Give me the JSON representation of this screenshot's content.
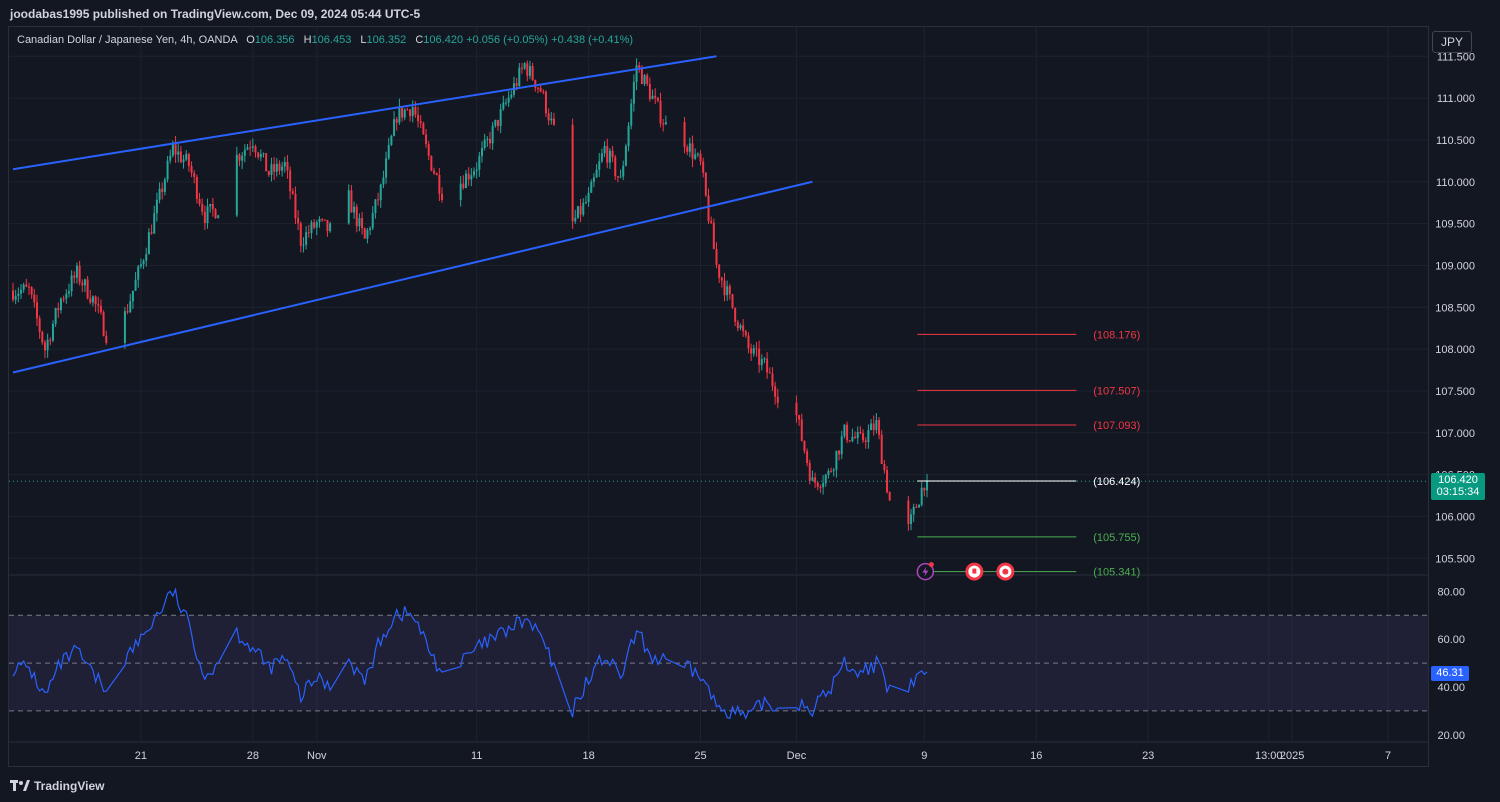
{
  "header": {
    "published_line": "joodabas1995 published on TradingView.com, Dec 09, 2024 05:44 UTC-5"
  },
  "legend": {
    "symbol": "Canadian Dollar / Japanese Yen, 4h, OANDA",
    "open_label": "O",
    "open": "106.356",
    "high_label": "H",
    "high": "106.453",
    "low_label": "L",
    "low": "106.352",
    "close_label": "C",
    "close": "106.420",
    "change": "+0.056 (+0.05%)",
    "change2": "+0.438 (+0.41%)"
  },
  "currency_button": "JPY",
  "last_price": {
    "price": "106.420",
    "countdown": "03:15:34"
  },
  "rsi_value_tag": "46.31",
  "brand": {
    "name": "TradingView"
  },
  "colors": {
    "background": "#131722",
    "up": "#26a69a",
    "down": "#f23645",
    "channel": "#2962ff",
    "rsi_line": "#2962ff",
    "rsi_band": "#7e57c2"
  },
  "chart_data": [
    {
      "type": "candlestick",
      "title": "Canadian Dollar / Japanese Yen, 4h, OANDA",
      "x_ticks": [
        "21",
        "28",
        "Nov",
        "11",
        "18",
        "25",
        "Dec",
        "9",
        "16",
        "23",
        "13:00",
        "2025",
        "7"
      ],
      "y_ticks": [
        111.5,
        111.0,
        110.5,
        110.0,
        109.5,
        109.0,
        108.5,
        108.0,
        107.5,
        107.0,
        106.5,
        106.0,
        105.5
      ],
      "ylim": [
        105.3,
        111.85
      ],
      "price_path": [
        [
          "Oct 14",
          108.7
        ],
        [
          "Oct 15",
          108.0
        ],
        [
          "Oct 16",
          108.6
        ],
        [
          "Oct 17",
          108.9
        ],
        [
          "Oct 18",
          108.6
        ],
        [
          "Oct 19",
          108.1
        ],
        [
          "Oct 20",
          108.4
        ],
        [
          "Oct 21",
          109.0
        ],
        [
          "Oct 22",
          109.7
        ],
        [
          "Oct 23",
          110.4
        ],
        [
          "Oct 24",
          110.2
        ],
        [
          "Oct 25",
          109.6
        ],
        [
          "Oct 26",
          109.7
        ],
        [
          "Oct 27",
          110.3
        ],
        [
          "Oct 28",
          110.5
        ],
        [
          "Oct 29",
          110.1
        ],
        [
          "Oct 30",
          110.2
        ],
        [
          "Oct 31",
          109.3
        ],
        [
          "Nov 1",
          109.5
        ],
        [
          "Nov 2",
          109.4
        ],
        [
          "Nov 3",
          109.8
        ],
        [
          "Nov 4",
          109.3
        ],
        [
          "Nov 5",
          109.9
        ],
        [
          "Nov 6",
          110.8
        ],
        [
          "Nov 7",
          110.9
        ],
        [
          "Nov 8",
          110.3
        ],
        [
          "Nov 9",
          109.8
        ],
        [
          "Nov 10",
          110.0
        ],
        [
          "Nov 11",
          110.2
        ],
        [
          "Nov 12",
          110.6
        ],
        [
          "Nov 13",
          111.0
        ],
        [
          "Nov 14",
          111.4
        ],
        [
          "Nov 15",
          111.1
        ],
        [
          "Nov 16",
          110.5
        ],
        [
          "Nov 17",
          109.5
        ],
        [
          "Nov 18",
          109.8
        ],
        [
          "Nov 19",
          110.4
        ],
        [
          "Nov 20",
          110.0
        ],
        [
          "Nov 21",
          111.4
        ],
        [
          "Nov 22",
          111.0
        ],
        [
          "Nov 23",
          110.6
        ],
        [
          "Nov 24",
          110.5
        ],
        [
          "Nov 25",
          110.2
        ],
        [
          "Nov 26",
          109.0
        ],
        [
          "Nov 27",
          108.5
        ],
        [
          "Nov 28",
          108.0
        ],
        [
          "Nov 29",
          107.8
        ],
        [
          "Nov 30",
          107.4
        ],
        [
          "Dec 1",
          107.2
        ],
        [
          "Dec 2",
          106.4
        ],
        [
          "Dec 3",
          106.5
        ],
        [
          "Dec 4",
          107.0
        ],
        [
          "Dec 5",
          106.9
        ],
        [
          "Dec 6",
          107.1
        ],
        [
          "Dec 7",
          106.0
        ],
        [
          "Dec 8",
          105.85
        ],
        [
          "Dec 9",
          106.42
        ]
      ],
      "channel_upper": [
        [
          "Oct 13",
          110.15
        ],
        [
          "Nov 26",
          111.5
        ]
      ],
      "channel_lower": [
        [
          "Oct 13",
          107.72
        ],
        [
          "Dec 2",
          110.0
        ]
      ],
      "levels": [
        {
          "label": "(108.176)",
          "value": 108.176,
          "color": "#f23645"
        },
        {
          "label": "(107.507)",
          "value": 107.507,
          "color": "#f23645"
        },
        {
          "label": "(107.093)",
          "value": 107.093,
          "color": "#f23645"
        },
        {
          "label": "(106.424)",
          "value": 106.424,
          "color": "#ffffff"
        },
        {
          "label": "(105.755)",
          "value": 105.755,
          "color": "#4caf50"
        },
        {
          "label": "(105.341)",
          "value": 105.341,
          "color": "#4caf50"
        }
      ],
      "last": 106.42
    },
    {
      "type": "line",
      "y_ticks": [
        80.0,
        60.0,
        40.0,
        20.0
      ],
      "ylim": [
        17,
        86
      ],
      "bands": [
        70,
        50,
        30
      ],
      "last": 46.31,
      "rsi_path": [
        [
          "Oct 14",
          48
        ],
        [
          "Oct 15",
          36
        ],
        [
          "Oct 16",
          50
        ],
        [
          "Oct 17",
          55
        ],
        [
          "Oct 18",
          45
        ],
        [
          "Oct 19",
          38
        ],
        [
          "Oct 20",
          52
        ],
        [
          "Oct 21",
          60
        ],
        [
          "Oct 22",
          70
        ],
        [
          "Oct 23",
          80
        ],
        [
          "Oct 24",
          66
        ],
        [
          "Oct 25",
          44
        ],
        [
          "Oct 26",
          52
        ],
        [
          "Oct 27",
          63
        ],
        [
          "Oct 28",
          56
        ],
        [
          "Oct 29",
          48
        ],
        [
          "Oct 30",
          52
        ],
        [
          "Oct 31",
          36
        ],
        [
          "Nov 1",
          44
        ],
        [
          "Nov 2",
          40
        ],
        [
          "Nov 3",
          52
        ],
        [
          "Nov 4",
          42
        ],
        [
          "Nov 5",
          60
        ],
        [
          "Nov 6",
          71
        ],
        [
          "Nov 7",
          70
        ],
        [
          "Nov 8",
          56
        ],
        [
          "Nov 9",
          44
        ],
        [
          "Nov 10",
          50
        ],
        [
          "Nov 11",
          56
        ],
        [
          "Nov 12",
          60
        ],
        [
          "Nov 13",
          64
        ],
        [
          "Nov 14",
          68
        ],
        [
          "Nov 15",
          62
        ],
        [
          "Nov 16",
          44
        ],
        [
          "Nov 17",
          30
        ],
        [
          "Nov 18",
          44
        ],
        [
          "Nov 19",
          53
        ],
        [
          "Nov 20",
          44
        ],
        [
          "Nov 21",
          63
        ],
        [
          "Nov 22",
          52
        ],
        [
          "Nov 23",
          50
        ],
        [
          "Nov 24",
          48
        ],
        [
          "Nov 25",
          45
        ],
        [
          "Nov 26",
          32
        ],
        [
          "Nov 27",
          30
        ],
        [
          "Nov 28",
          27
        ],
        [
          "Nov 29",
          34
        ],
        [
          "Nov 30",
          30
        ],
        [
          "Dec 1",
          34
        ],
        [
          "Dec 2",
          31
        ],
        [
          "Dec 3",
          38
        ],
        [
          "Dec 4",
          50
        ],
        [
          "Dec 5",
          46
        ],
        [
          "Dec 6",
          50
        ],
        [
          "Dec 7",
          35
        ],
        [
          "Dec 8",
          40
        ],
        [
          "Dec 9",
          46.31
        ]
      ]
    }
  ]
}
